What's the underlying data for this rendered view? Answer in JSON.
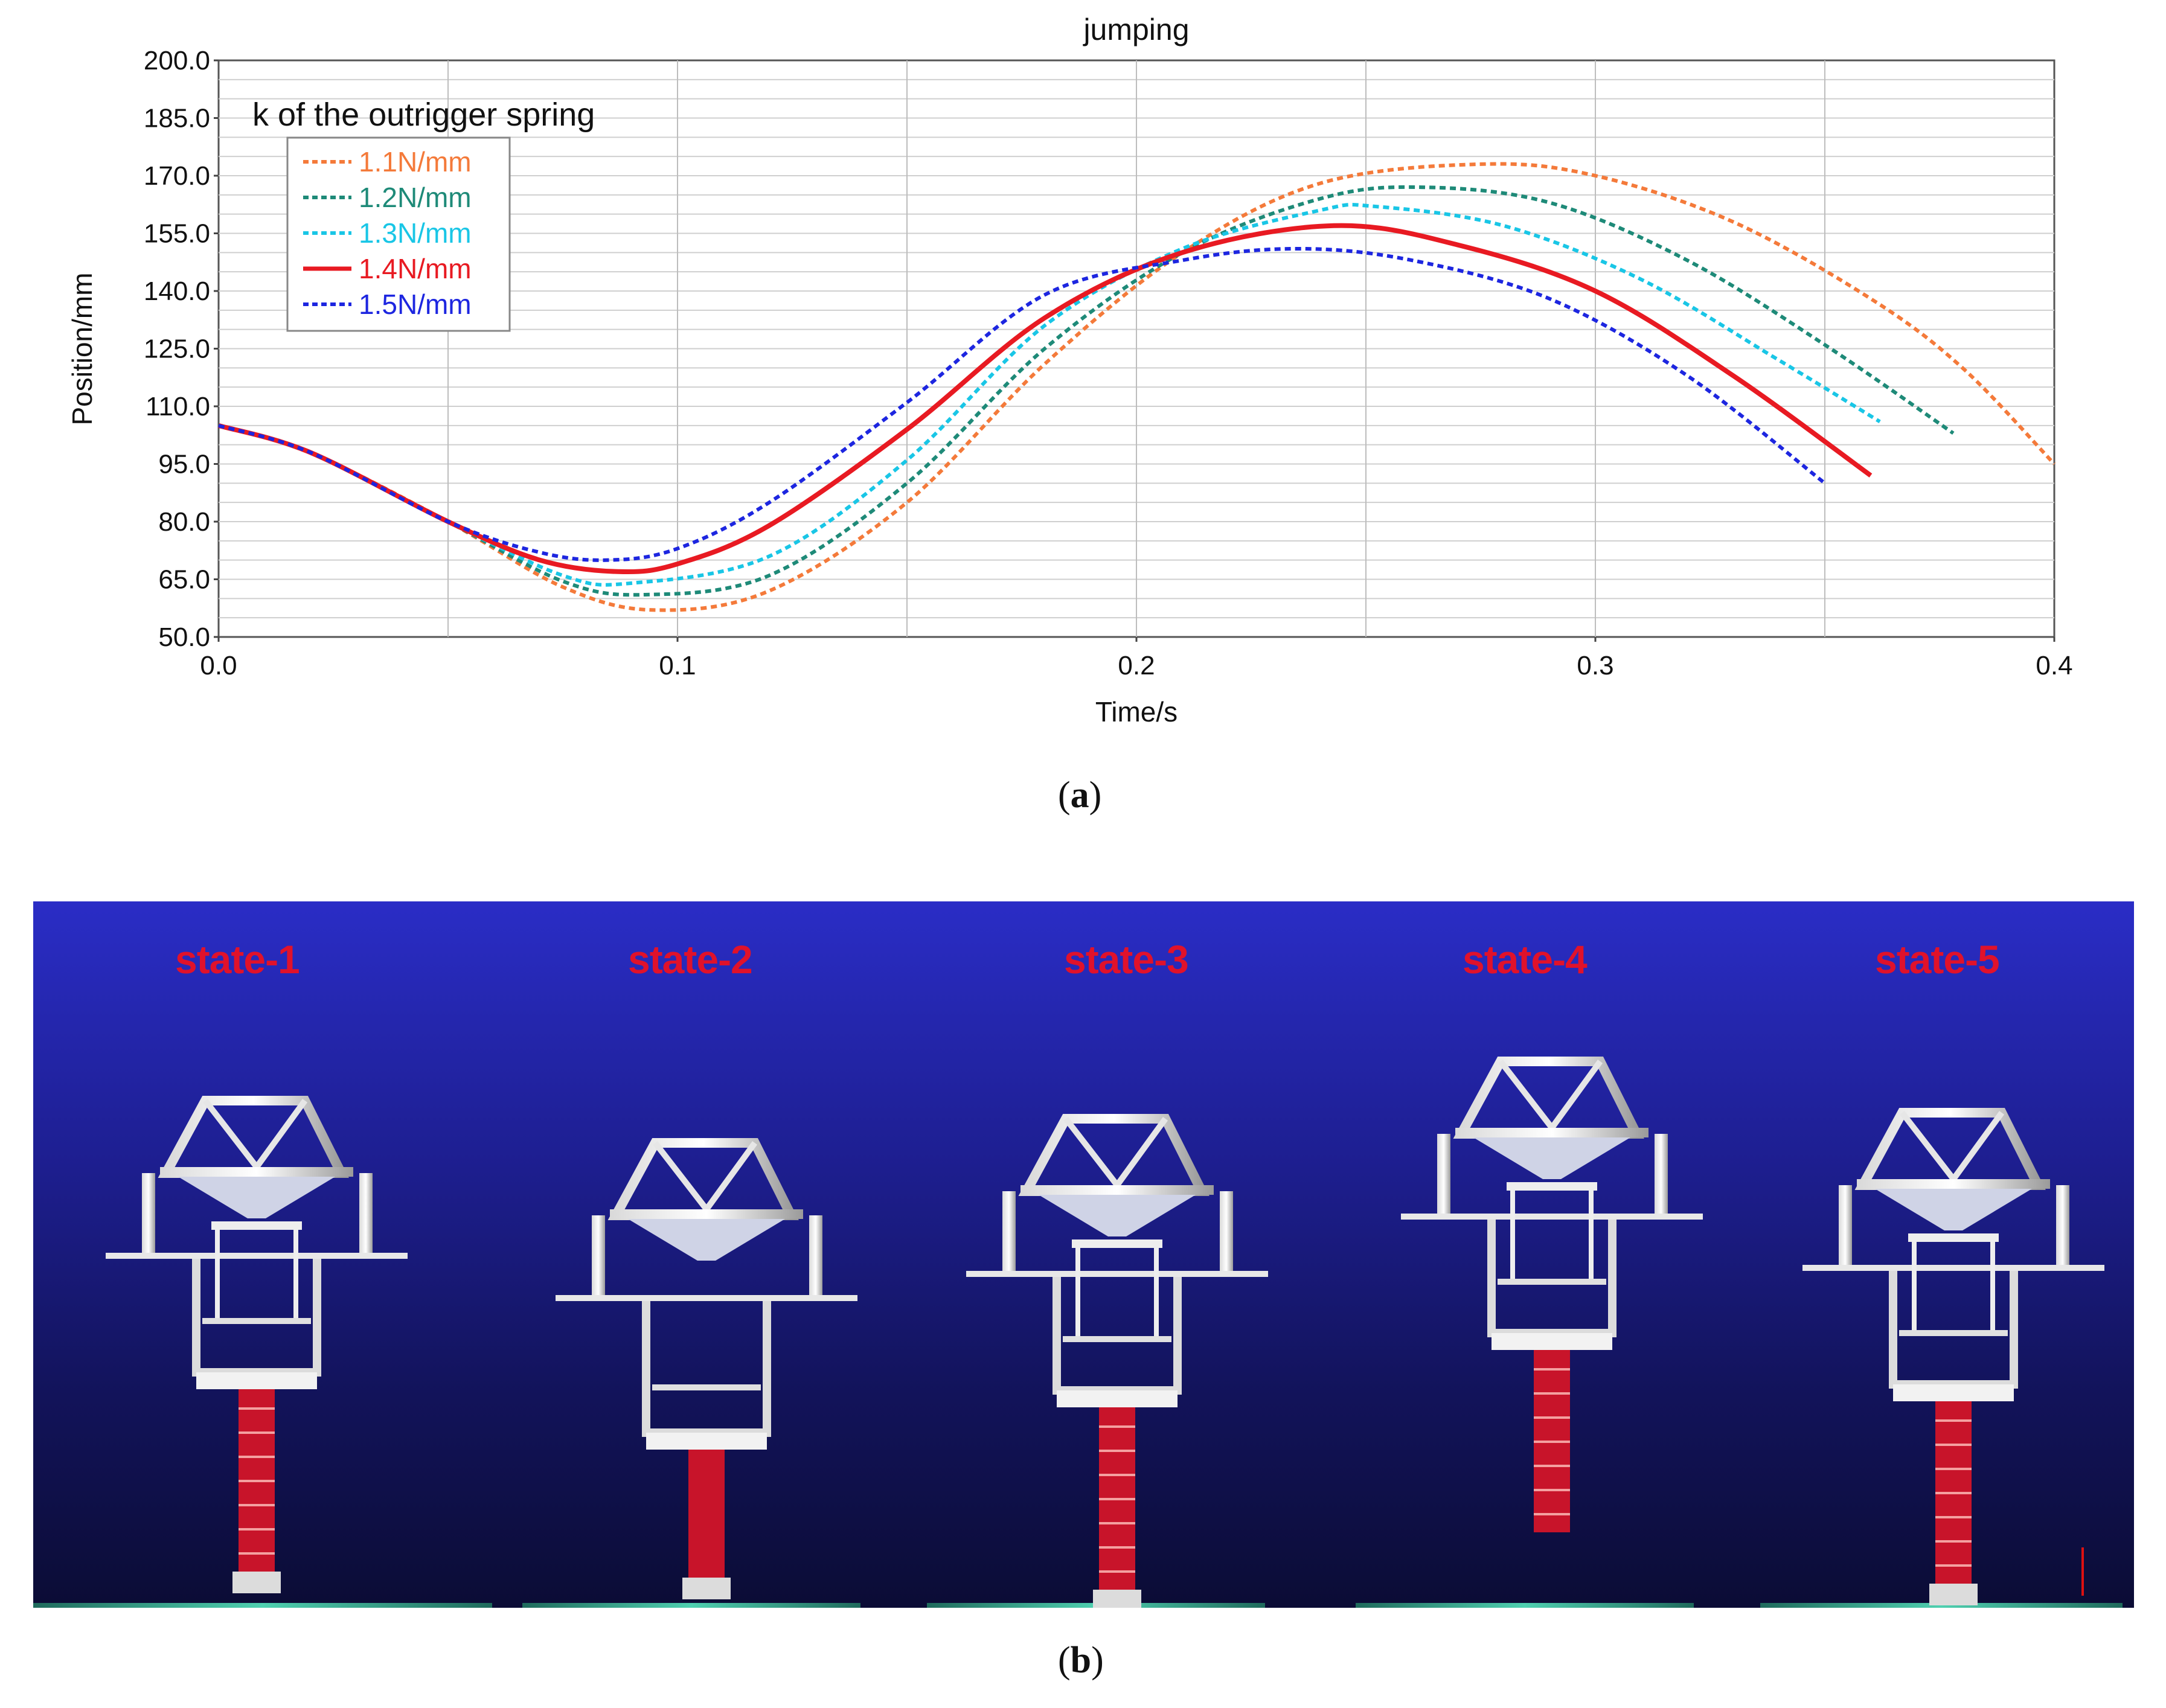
{
  "figure": {
    "caption_a": "a",
    "caption_b": "b"
  },
  "chart_data": {
    "type": "line",
    "title": "jumping",
    "xlabel": "Time/s",
    "ylabel": "Position/mm",
    "xlim": [
      0.0,
      0.4
    ],
    "ylim": [
      50.0,
      200.0
    ],
    "xticks": [
      "0.0",
      "0.1",
      "0.2",
      "0.3",
      "0.4"
    ],
    "yticks": [
      "50.0",
      "65.0",
      "80.0",
      "95.0",
      "110.0",
      "125.0",
      "140.0",
      "155.0",
      "170.0",
      "185.0",
      "200.0"
    ],
    "grid": true,
    "legend_title": "k of the outrigger spring",
    "legend_position": "top-left",
    "series": [
      {
        "name": "1.1N/mm",
        "color": "#f47a3a",
        "style": "dotted",
        "x": [
          0,
          0.02,
          0.05,
          0.075,
          0.095,
          0.12,
          0.15,
          0.18,
          0.21,
          0.24,
          0.275,
          0.3,
          0.33,
          0.36,
          0.38,
          0.4
        ],
        "y": [
          105,
          98,
          80,
          63,
          57,
          62,
          85,
          121,
          150,
          168,
          173,
          170,
          158,
          138,
          120,
          95
        ]
      },
      {
        "name": "1.2N/mm",
        "color": "#1e8a78",
        "style": "dotted",
        "x": [
          0,
          0.02,
          0.05,
          0.075,
          0.093,
          0.12,
          0.15,
          0.18,
          0.21,
          0.24,
          0.262,
          0.29,
          0.32,
          0.35,
          0.378
        ],
        "y": [
          105,
          98,
          80,
          64.5,
          61,
          66,
          90,
          125,
          150,
          164,
          167,
          163,
          148,
          126,
          103
        ]
      },
      {
        "name": "1.3N/mm",
        "color": "#19c6e6",
        "style": "dotted",
        "x": [
          0,
          0.02,
          0.05,
          0.075,
          0.09,
          0.12,
          0.15,
          0.18,
          0.21,
          0.24,
          0.252,
          0.28,
          0.31,
          0.34,
          0.362
        ],
        "y": [
          105,
          98,
          80,
          66,
          64,
          71,
          96,
          131,
          151,
          161,
          162,
          157,
          143,
          122,
          106
        ]
      },
      {
        "name": "1.4N/mm",
        "color": "#e81a22",
        "style": "solid",
        "x": [
          0,
          0.02,
          0.05,
          0.07,
          0.087,
          0.1,
          0.12,
          0.15,
          0.18,
          0.21,
          0.243,
          0.27,
          0.3,
          0.33,
          0.36
        ],
        "y": [
          105,
          98,
          80,
          70,
          67,
          69,
          79,
          104,
          133,
          150,
          157,
          152,
          140,
          118,
          92
        ]
      },
      {
        "name": "1.5N/mm",
        "color": "#1d26e0",
        "style": "dotted",
        "x": [
          0,
          0.02,
          0.05,
          0.07,
          0.085,
          0.1,
          0.12,
          0.15,
          0.18,
          0.21,
          0.235,
          0.26,
          0.29,
          0.32,
          0.35
        ],
        "y": [
          105,
          98,
          80,
          72,
          70,
          73,
          85,
          111,
          139,
          148,
          151,
          148,
          138,
          118,
          90
        ]
      }
    ]
  },
  "scene": {
    "states": [
      "state-1",
      "state-2",
      "state-3",
      "state-4",
      "state-5"
    ]
  }
}
